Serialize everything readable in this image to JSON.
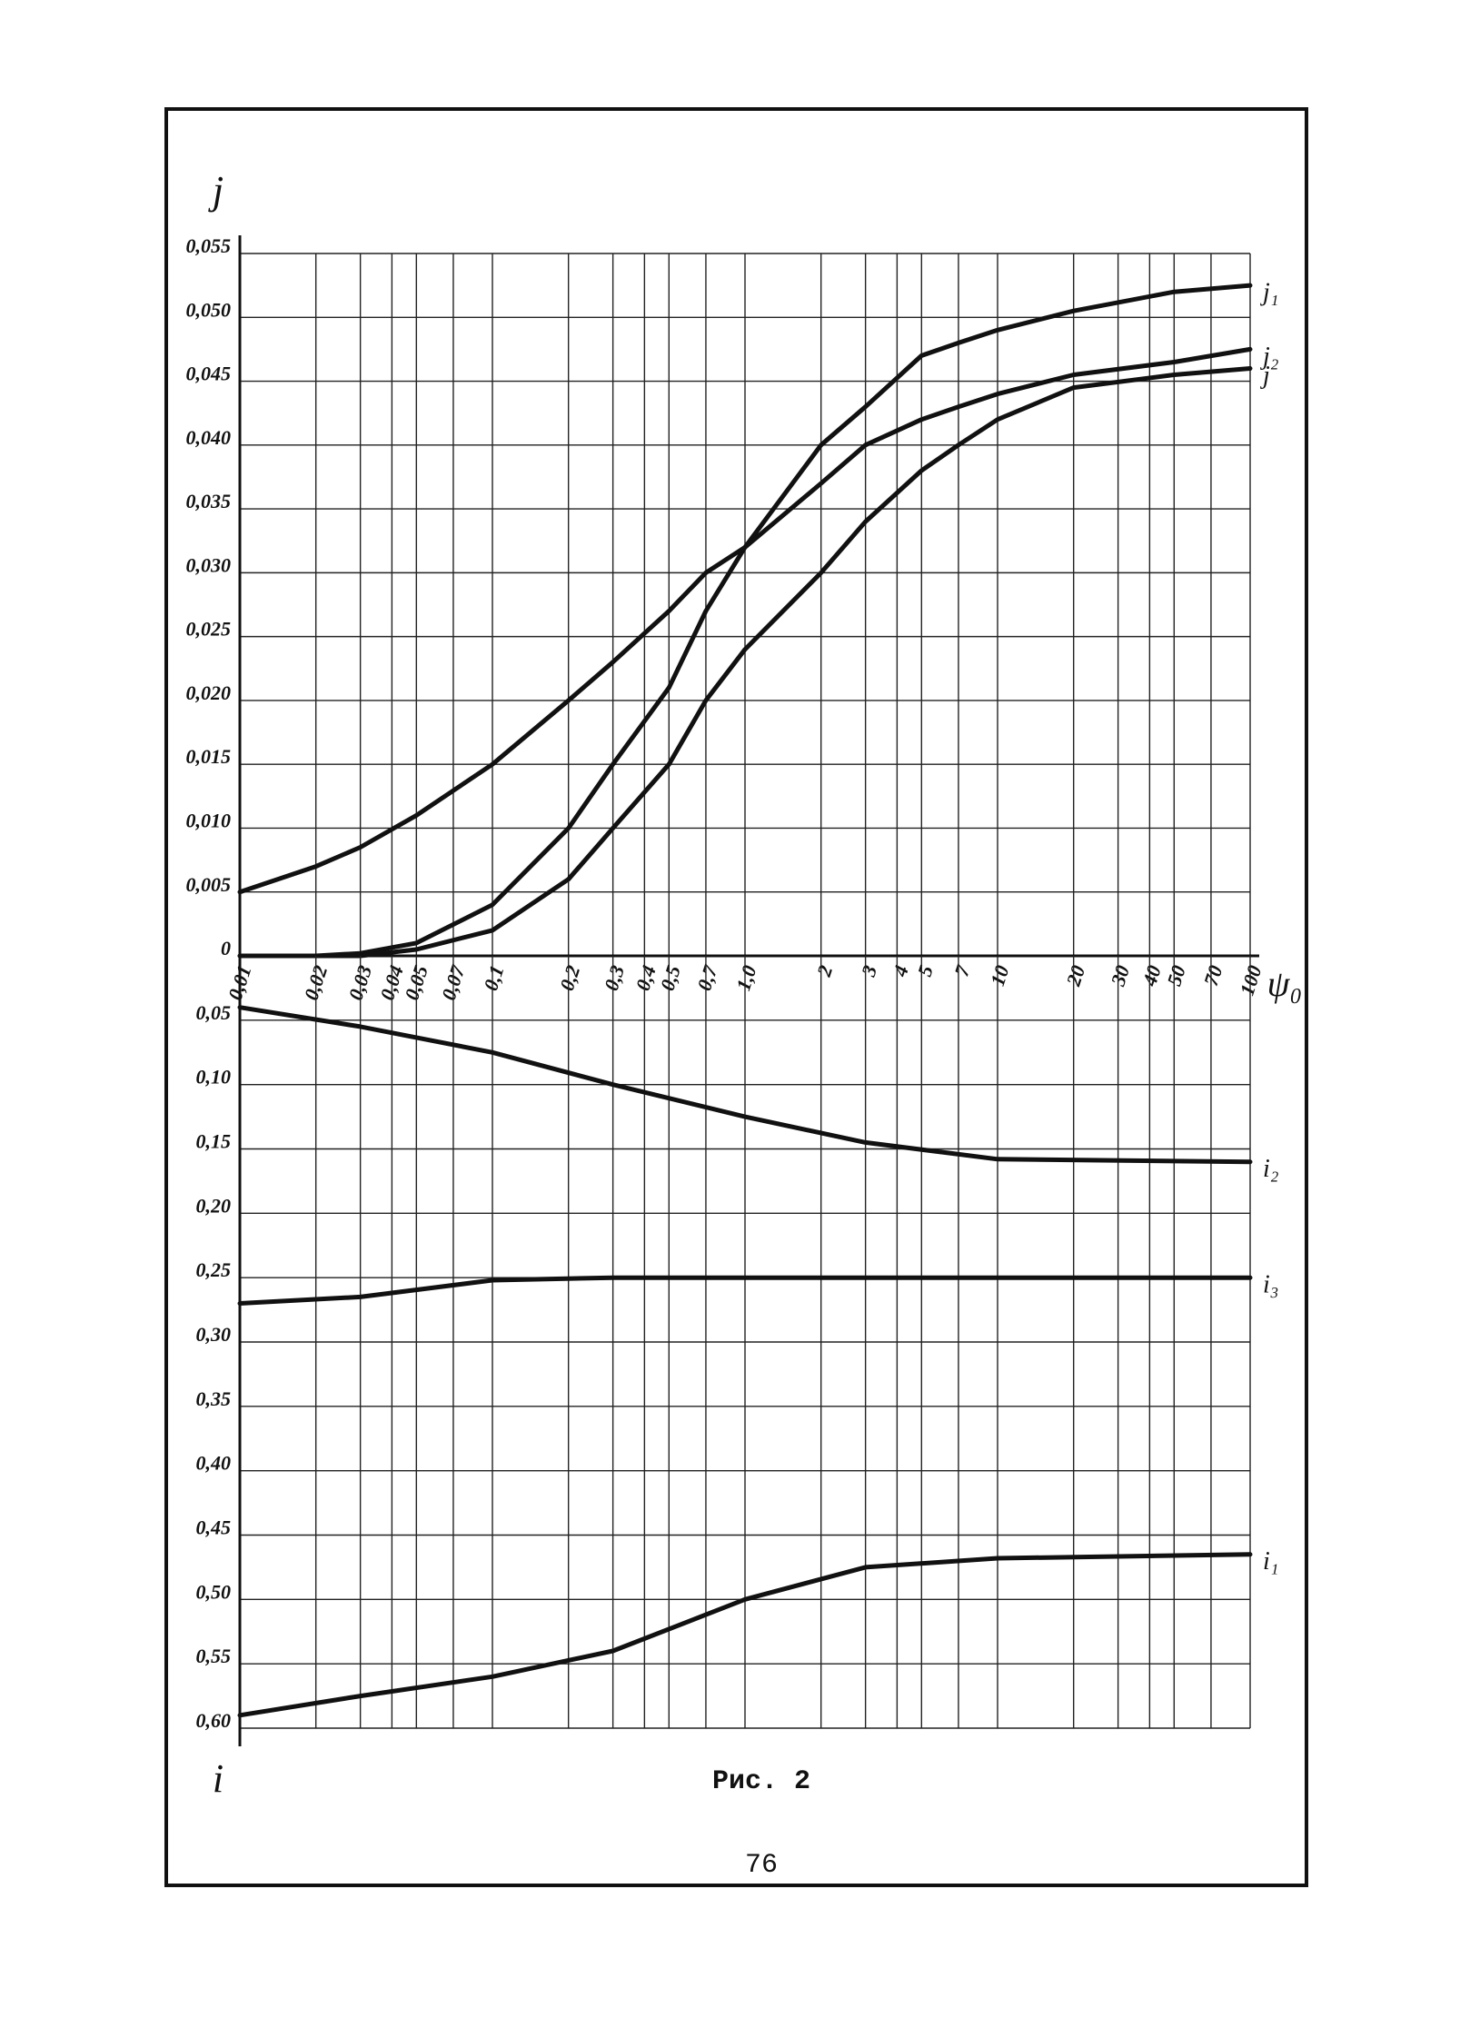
{
  "chart_data": [
    {
      "type": "line",
      "xscale": "log",
      "grid": true,
      "y_label": "j",
      "x_label": "ψ₀",
      "xlim": [
        0.01,
        100
      ],
      "xticks": [
        {
          "value": 0.01,
          "label": "0,01"
        },
        {
          "value": 0.02,
          "label": "0,02"
        },
        {
          "value": 0.03,
          "label": "0,03"
        },
        {
          "value": 0.04,
          "label": "0,04"
        },
        {
          "value": 0.05,
          "label": "0,05"
        },
        {
          "value": 0.07,
          "label": "0,07"
        },
        {
          "value": 0.1,
          "label": "0,1"
        },
        {
          "value": 0.2,
          "label": "0,2"
        },
        {
          "value": 0.3,
          "label": "0,3"
        },
        {
          "value": 0.4,
          "label": "0,4"
        },
        {
          "value": 0.5,
          "label": "0,5"
        },
        {
          "value": 0.7,
          "label": "0,7"
        },
        {
          "value": 1,
          "label": "1,0"
        },
        2,
        3,
        4,
        5,
        7,
        10,
        20,
        30,
        40,
        50,
        70,
        100
      ],
      "ylim": [
        0,
        0.055
      ],
      "yticks": [
        0,
        {
          "value": 0.005,
          "label": "0,005"
        },
        {
          "value": 0.01,
          "label": "0,010"
        },
        {
          "value": 0.015,
          "label": "0,015"
        },
        {
          "value": 0.02,
          "label": "0,020"
        },
        {
          "value": 0.025,
          "label": "0,025"
        },
        {
          "value": 0.03,
          "label": "0,030"
        },
        {
          "value": 0.035,
          "label": "0,035"
        },
        {
          "value": 0.04,
          "label": "0,040"
        },
        {
          "value": 0.045,
          "label": "0,045"
        },
        {
          "value": 0.05,
          "label": "0,050"
        },
        {
          "value": 0.055,
          "label": "0,055"
        }
      ],
      "x": [
        0.01,
        0.02,
        0.03,
        0.05,
        0.1,
        0.2,
        0.3,
        0.5,
        0.7,
        1,
        2,
        3,
        5,
        7,
        10,
        20,
        50,
        100
      ],
      "series": [
        {
          "name": "j₁",
          "color": "#111111",
          "values": [
            0,
            0,
            0.0002,
            0.001,
            0.004,
            0.01,
            0.015,
            0.021,
            0.027,
            0.032,
            0.04,
            0.043,
            0.047,
            0.048,
            0.049,
            0.0505,
            0.052,
            0.0525
          ]
        },
        {
          "name": "j₂",
          "color": "#111111",
          "values": [
            0.005,
            0.007,
            0.0085,
            0.011,
            0.015,
            0.02,
            0.023,
            0.027,
            0.03,
            0.032,
            0.037,
            0.04,
            0.042,
            0.043,
            0.044,
            0.0455,
            0.0465,
            0.0475
          ]
        },
        {
          "name": "j",
          "color": "#111111",
          "values": [
            0,
            0,
            0,
            0.0005,
            0.002,
            0.006,
            0.01,
            0.015,
            0.02,
            0.024,
            0.03,
            0.034,
            0.038,
            0.04,
            0.042,
            0.0445,
            0.0455,
            0.046
          ]
        }
      ]
    },
    {
      "type": "line",
      "xscale": "log",
      "grid": true,
      "y_label": "i",
      "xlim": [
        0.01,
        100
      ],
      "ylim": [
        0.6,
        0
      ],
      "yticks": [
        {
          "value": 0.05,
          "label": "0,05"
        },
        {
          "value": 0.1,
          "label": "0,10"
        },
        {
          "value": 0.15,
          "label": "0,15"
        },
        {
          "value": 0.2,
          "label": "0,20"
        },
        {
          "value": 0.25,
          "label": "0,25"
        },
        {
          "value": 0.3,
          "label": "0,30"
        },
        {
          "value": 0.35,
          "label": "0,35"
        },
        {
          "value": 0.4,
          "label": "0,40"
        },
        {
          "value": 0.45,
          "label": "0,45"
        },
        {
          "value": 0.5,
          "label": "0,50"
        },
        {
          "value": 0.55,
          "label": "0,55"
        },
        {
          "value": 0.6,
          "label": "0,60"
        }
      ],
      "x": [
        0.01,
        0.03,
        0.1,
        0.3,
        1,
        3,
        10,
        100
      ],
      "series": [
        {
          "name": "i₂",
          "color": "#111111",
          "values": [
            0.04,
            0.055,
            0.075,
            0.1,
            0.125,
            0.145,
            0.158,
            0.16
          ]
        },
        {
          "name": "i₃",
          "color": "#111111",
          "values": [
            0.27,
            0.265,
            0.252,
            0.25,
            0.25,
            0.25,
            0.25,
            0.25
          ]
        },
        {
          "name": "i₁",
          "color": "#111111",
          "values": [
            0.59,
            0.575,
            0.56,
            0.54,
            0.5,
            0.475,
            0.468,
            0.465
          ]
        }
      ]
    }
  ],
  "caption": "Рис. 2",
  "page_number": 76
}
